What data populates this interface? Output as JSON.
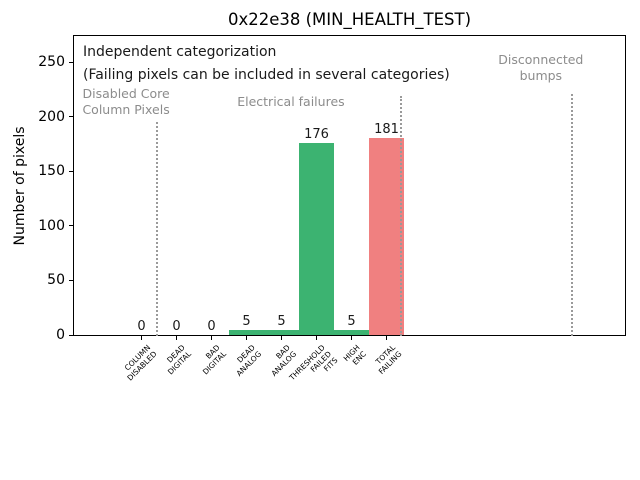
{
  "figure": {
    "background": "#ffffff"
  },
  "chart_data": {
    "type": "bar",
    "title": "0x22e38 (MIN_HEALTH_TEST)",
    "xlabel": "",
    "ylabel": "Number of pixels",
    "categories": [
      "COLUMN\nDISABLED",
      "DEAD\nDIGITAL",
      "BAD\nDIGITAL",
      "DEAD\nANALOG",
      "BAD\nANALOG",
      "THRESHOLD\nFAILED\nFITS",
      "HIGH\nENC",
      "TOTAL\nFAILING"
    ],
    "values": [
      0,
      0,
      0,
      5,
      5,
      176,
      5,
      181
    ],
    "bar_labels": [
      "0",
      "0",
      "0",
      "5",
      "5",
      "176",
      "5",
      "181"
    ],
    "bar_colors": [
      "#3cb371",
      "#3cb371",
      "#3cb371",
      "#3cb371",
      "#3cb371",
      "#3cb371",
      "#3cb371",
      "#f08080"
    ],
    "bar_width": 1.0,
    "ylim": [
      0,
      275
    ],
    "yticks": [
      0,
      50,
      100,
      150,
      200,
      250
    ],
    "grid": false,
    "legend": null,
    "annotations": {
      "note_lines": [
        "Independent categorization",
        "(Failing pixels can be included in several categories)"
      ],
      "note_color": "#1a1a1a",
      "sections": [
        {
          "label": "Disabled Core\nColumn Pixels",
          "x_cat": -0.44,
          "top": 86
        },
        {
          "label": "Electrical failures",
          "x_cat": 4.27,
          "top": 94
        },
        {
          "label": "Disconnected\nbumps",
          "x_cat": 11.41,
          "top": 52
        }
      ],
      "section_color": "#8c8c8c",
      "separators": [
        {
          "x_cat": 0.44,
          "top": 122
        },
        {
          "x_cat": 7.41,
          "top": 96
        },
        {
          "x_cat": 12.3,
          "top": 94
        }
      ],
      "separator_color": "#9a9a9a"
    }
  }
}
